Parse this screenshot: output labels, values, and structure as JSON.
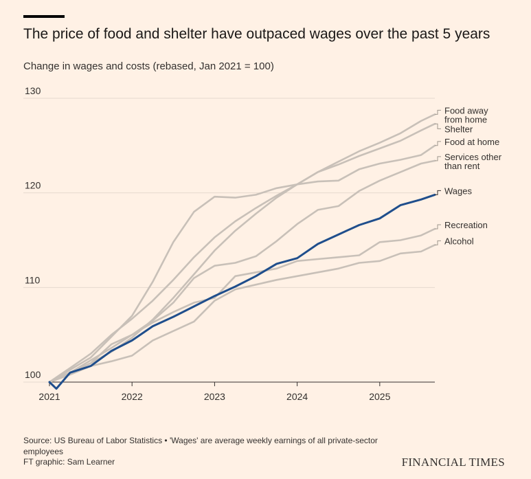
{
  "header": {
    "title": "The price of food and shelter have outpaced wages over the past 5 years",
    "subtitle": "Change in wages and costs (rebased, Jan 2021 = 100)"
  },
  "footer": {
    "source": "Source: US Bureau of Labor Statistics • 'Wages' are average weekly earnings of all private-sector employees",
    "credit": "FT graphic: Sam Learner",
    "brand": "FINANCIAL TIMES"
  },
  "colors": {
    "background": "#fff1e5",
    "grid": "#e6d9ce",
    "other_series": "#c8c0b8",
    "wages": "#1f4e8c"
  },
  "chart_data": {
    "type": "line",
    "title": "",
    "xlabel": "",
    "ylabel": "",
    "xlim": [
      2021.0,
      2025.667
    ],
    "ylim": [
      100,
      130
    ],
    "yticks": [
      100,
      110,
      120,
      130
    ],
    "xticks": [
      2021,
      2022,
      2023,
      2024,
      2025
    ],
    "xtick_labels": [
      "2021",
      "2022",
      "2023",
      "2024",
      "2025"
    ],
    "grid": true,
    "legend": "direct-labels-right",
    "series": [
      {
        "name": "Food away from home",
        "label_lines": [
          "Food away",
          "from home"
        ],
        "highlight": false,
        "points": [
          [
            2021.0,
            100.0
          ],
          [
            2021.25,
            101.5
          ],
          [
            2021.5,
            103.0
          ],
          [
            2021.75,
            105.0
          ],
          [
            2022.0,
            106.7
          ],
          [
            2022.25,
            108.6
          ],
          [
            2022.5,
            110.8
          ],
          [
            2022.75,
            113.2
          ],
          [
            2023.0,
            115.3
          ],
          [
            2023.25,
            117.0
          ],
          [
            2023.5,
            118.4
          ],
          [
            2023.75,
            119.7
          ],
          [
            2024.0,
            120.9
          ],
          [
            2024.25,
            122.2
          ],
          [
            2024.5,
            123.3
          ],
          [
            2024.75,
            124.4
          ],
          [
            2025.0,
            125.3
          ],
          [
            2025.25,
            126.3
          ],
          [
            2025.5,
            127.6
          ],
          [
            2025.667,
            128.3
          ]
        ]
      },
      {
        "name": "Shelter",
        "label_lines": [
          "Shelter"
        ],
        "highlight": false,
        "points": [
          [
            2021.0,
            100.0
          ],
          [
            2021.25,
            101.0
          ],
          [
            2021.5,
            102.0
          ],
          [
            2021.75,
            103.2
          ],
          [
            2022.0,
            104.7
          ],
          [
            2022.25,
            106.6
          ],
          [
            2022.5,
            108.9
          ],
          [
            2022.75,
            111.4
          ],
          [
            2023.0,
            113.9
          ],
          [
            2023.25,
            116.0
          ],
          [
            2023.5,
            117.8
          ],
          [
            2023.75,
            119.5
          ],
          [
            2024.0,
            120.9
          ],
          [
            2024.25,
            122.2
          ],
          [
            2024.5,
            123.0
          ],
          [
            2024.75,
            123.9
          ],
          [
            2025.0,
            124.7
          ],
          [
            2025.25,
            125.5
          ],
          [
            2025.5,
            126.6
          ],
          [
            2025.667,
            127.3
          ]
        ]
      },
      {
        "name": "Food at home",
        "label_lines": [
          "Food at home"
        ],
        "highlight": false,
        "points": [
          [
            2021.0,
            100.0
          ],
          [
            2021.25,
            101.3
          ],
          [
            2021.5,
            102.6
          ],
          [
            2021.75,
            104.8
          ],
          [
            2022.0,
            107.0
          ],
          [
            2022.25,
            110.6
          ],
          [
            2022.5,
            114.8
          ],
          [
            2022.75,
            118.0
          ],
          [
            2023.0,
            119.6
          ],
          [
            2023.25,
            119.5
          ],
          [
            2023.5,
            119.8
          ],
          [
            2023.75,
            120.5
          ],
          [
            2024.0,
            120.9
          ],
          [
            2024.25,
            121.2
          ],
          [
            2024.5,
            121.3
          ],
          [
            2024.75,
            122.5
          ],
          [
            2025.0,
            123.1
          ],
          [
            2025.25,
            123.5
          ],
          [
            2025.5,
            124.0
          ],
          [
            2025.667,
            125.0
          ]
        ]
      },
      {
        "name": "Services other than rent",
        "label_lines": [
          "Services other",
          "than rent"
        ],
        "highlight": false,
        "points": [
          [
            2021.0,
            100.0
          ],
          [
            2021.25,
            101.0
          ],
          [
            2021.5,
            102.3
          ],
          [
            2021.75,
            103.6
          ],
          [
            2022.0,
            105.0
          ],
          [
            2022.25,
            106.5
          ],
          [
            2022.5,
            108.4
          ],
          [
            2022.75,
            111.0
          ],
          [
            2023.0,
            112.3
          ],
          [
            2023.25,
            112.6
          ],
          [
            2023.5,
            113.3
          ],
          [
            2023.75,
            114.9
          ],
          [
            2024.0,
            116.7
          ],
          [
            2024.25,
            118.2
          ],
          [
            2024.5,
            118.6
          ],
          [
            2024.75,
            120.2
          ],
          [
            2025.0,
            121.3
          ],
          [
            2025.25,
            122.2
          ],
          [
            2025.5,
            123.1
          ],
          [
            2025.667,
            123.4
          ]
        ]
      },
      {
        "name": "Wages",
        "label_lines": [
          "Wages"
        ],
        "highlight": true,
        "points": [
          [
            2021.0,
            100.0
          ],
          [
            2021.083,
            99.3
          ],
          [
            2021.25,
            101.0
          ],
          [
            2021.5,
            101.7
          ],
          [
            2021.75,
            103.3
          ],
          [
            2022.0,
            104.4
          ],
          [
            2022.25,
            105.9
          ],
          [
            2022.5,
            106.9
          ],
          [
            2022.75,
            108.0
          ],
          [
            2023.0,
            109.1
          ],
          [
            2023.25,
            110.1
          ],
          [
            2023.5,
            111.2
          ],
          [
            2023.75,
            112.5
          ],
          [
            2024.0,
            113.1
          ],
          [
            2024.25,
            114.6
          ],
          [
            2024.5,
            115.6
          ],
          [
            2024.75,
            116.6
          ],
          [
            2025.0,
            117.3
          ],
          [
            2025.25,
            118.7
          ],
          [
            2025.5,
            119.3
          ],
          [
            2025.667,
            119.8
          ]
        ]
      },
      {
        "name": "Recreation",
        "label_lines": [
          "Recreation"
        ],
        "highlight": false,
        "points": [
          [
            2021.0,
            100.0
          ],
          [
            2021.25,
            101.0
          ],
          [
            2021.5,
            102.0
          ],
          [
            2021.75,
            104.0
          ],
          [
            2022.0,
            105.0
          ],
          [
            2022.25,
            106.3
          ],
          [
            2022.5,
            107.4
          ],
          [
            2022.75,
            108.4
          ],
          [
            2023.0,
            108.9
          ],
          [
            2023.25,
            111.2
          ],
          [
            2023.5,
            111.6
          ],
          [
            2023.75,
            112.0
          ],
          [
            2024.0,
            112.8
          ],
          [
            2024.25,
            113.0
          ],
          [
            2024.5,
            113.2
          ],
          [
            2024.75,
            113.4
          ],
          [
            2025.0,
            114.8
          ],
          [
            2025.25,
            115.0
          ],
          [
            2025.5,
            115.5
          ],
          [
            2025.667,
            116.2
          ]
        ]
      },
      {
        "name": "Alcohol",
        "label_lines": [
          "Alcohol"
        ],
        "highlight": false,
        "points": [
          [
            2021.0,
            100.0
          ],
          [
            2021.25,
            100.8
          ],
          [
            2021.5,
            101.7
          ],
          [
            2021.75,
            102.2
          ],
          [
            2022.0,
            102.8
          ],
          [
            2022.25,
            104.4
          ],
          [
            2022.5,
            105.4
          ],
          [
            2022.75,
            106.4
          ],
          [
            2023.0,
            108.6
          ],
          [
            2023.25,
            109.8
          ],
          [
            2023.5,
            110.3
          ],
          [
            2023.75,
            110.8
          ],
          [
            2024.0,
            111.2
          ],
          [
            2024.25,
            111.6
          ],
          [
            2024.5,
            112.0
          ],
          [
            2024.75,
            112.6
          ],
          [
            2025.0,
            112.8
          ],
          [
            2025.25,
            113.6
          ],
          [
            2025.5,
            113.8
          ],
          [
            2025.667,
            114.5
          ]
        ]
      }
    ]
  }
}
